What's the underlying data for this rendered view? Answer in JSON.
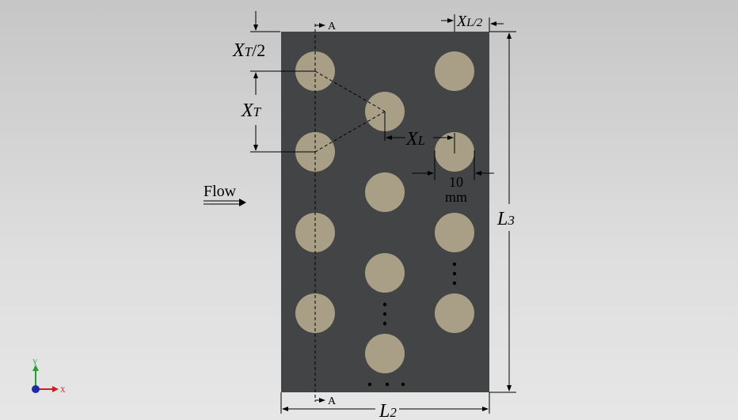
{
  "diagram": {
    "flow_label": "Flow",
    "section_label_top": "A",
    "section_label_bottom": "A",
    "xt_half": {
      "main": "X",
      "sub": "T",
      "suffix": "/2"
    },
    "xt": {
      "main": "X",
      "sub": "T"
    },
    "xl": {
      "main": "X",
      "sub": "L"
    },
    "xl_half": {
      "main": "X",
      "sub": "L/2"
    },
    "l2": {
      "main": "L",
      "sub": "2"
    },
    "l3": {
      "main": "L",
      "sub": "3"
    },
    "diameter_value": "10",
    "diameter_unit": "mm",
    "axis_y": "Y",
    "axis_x": "X",
    "colors": {
      "plate": "#434446",
      "tube": "#a99f86",
      "background": "#d4d4d4",
      "axis_x": "#cc1f1f",
      "axis_y": "#1fa22a",
      "axis_origin": "#1f2aa8"
    }
  }
}
